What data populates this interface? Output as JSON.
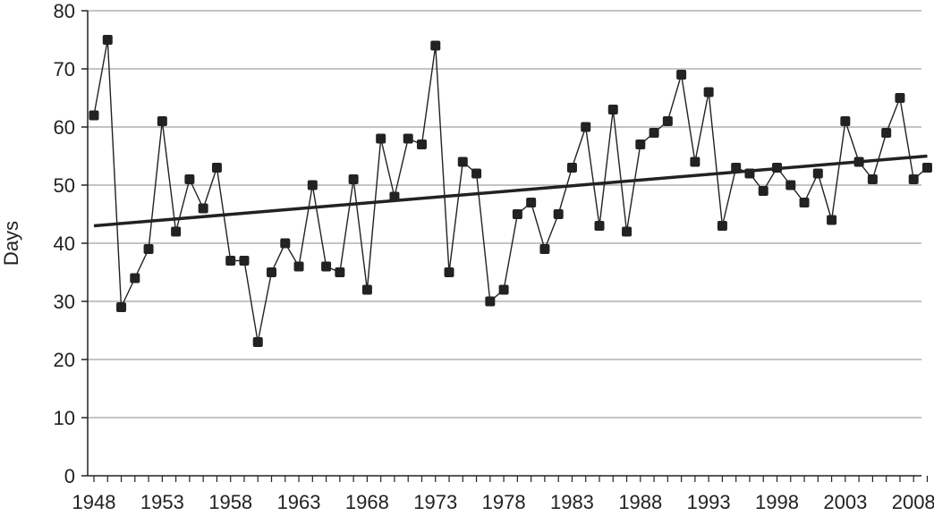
{
  "chart_data": {
    "type": "line",
    "title": "",
    "xlabel": "",
    "ylabel": "Days",
    "ylim": [
      0,
      80
    ],
    "xlim": [
      1948,
      2009
    ],
    "y_ticks": [
      "0",
      "10",
      "20",
      "30",
      "40",
      "50",
      "60",
      "70",
      "80"
    ],
    "x_ticks": [
      "1948",
      "1953",
      "1958",
      "1963",
      "1968",
      "1973",
      "1978",
      "1983",
      "1988",
      "1993",
      "1998",
      "2003",
      "2008"
    ],
    "grid": "horizontal",
    "legend": "none",
    "series": [
      {
        "marker": "square",
        "color": "#222222",
        "x": [
          1948,
          1949,
          1950,
          1951,
          1952,
          1953,
          1954,
          1955,
          1956,
          1957,
          1958,
          1959,
          1960,
          1961,
          1962,
          1963,
          1964,
          1965,
          1966,
          1967,
          1968,
          1969,
          1970,
          1971,
          1972,
          1973,
          1974,
          1975,
          1976,
          1977,
          1978,
          1979,
          1980,
          1981,
          1982,
          1983,
          1984,
          1985,
          1986,
          1987,
          1988,
          1989,
          1990,
          1991,
          1992,
          1993,
          1994,
          1995,
          1996,
          1997,
          1998,
          1999,
          2000,
          2001,
          2002,
          2003,
          2004,
          2005,
          2006,
          2007,
          2008,
          2009
        ],
        "y": [
          62,
          75,
          29,
          34,
          39,
          61,
          42,
          51,
          46,
          53,
          37,
          37,
          23,
          35,
          40,
          36,
          50,
          36,
          35,
          51,
          32,
          58,
          48,
          58,
          57,
          74,
          35,
          54,
          52,
          30,
          32,
          45,
          47,
          39,
          45,
          53,
          60,
          43,
          63,
          42,
          57,
          59,
          61,
          69,
          54,
          66,
          43,
          53,
          52,
          49,
          53,
          50,
          47,
          52,
          44,
          61,
          54,
          51,
          59,
          65,
          51,
          53
        ]
      },
      {
        "type": "trend",
        "color": "#222222",
        "x": [
          1948,
          2009
        ],
        "y": [
          43,
          55
        ]
      }
    ]
  }
}
